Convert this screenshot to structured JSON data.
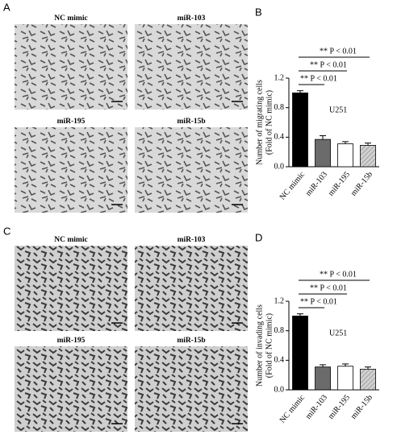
{
  "panels": {
    "A": "A",
    "C": "C",
    "images_A": [
      "NC mimic",
      "miR-103",
      "miR-195",
      "miR-15b"
    ],
    "images_C": [
      "NC mimic",
      "miR-103",
      "miR-195",
      "miR-15b"
    ]
  },
  "chart_data": [
    {
      "type": "bar",
      "panel": "B",
      "ylabel": [
        "Number of migrating cells",
        "(Fold of NC mimic)"
      ],
      "label": "U251",
      "annotations": [
        "** P < 0.01",
        "** P < 0.01",
        "** P < 0.01"
      ],
      "categories": [
        "NC mimic",
        "miR-103",
        "miR-195",
        "miR-15b"
      ],
      "values": [
        1.0,
        0.37,
        0.31,
        0.29
      ],
      "errors": [
        0.03,
        0.05,
        0.03,
        0.03
      ],
      "colors": [
        "#000000",
        "#6b6b6b",
        "#ffffff",
        "#c8c8c8"
      ],
      "hatched": [
        false,
        false,
        false,
        true
      ],
      "ylim": [
        0,
        1.2
      ],
      "yticks": [
        {
          "value": 0,
          "label": "0.0"
        },
        0.4,
        0.8,
        1.2
      ]
    },
    {
      "type": "bar",
      "panel": "D",
      "ylabel": [
        "Number of invading cells",
        "(Fold of NC mimic)"
      ],
      "label": "U251",
      "annotations": [
        "** P < 0.01",
        "** P < 0.01",
        "** P < 0.01"
      ],
      "categories": [
        "NC mimic",
        "miR-103",
        "miR-195",
        "miR-15b"
      ],
      "values": [
        1.0,
        0.31,
        0.32,
        0.28
      ],
      "errors": [
        0.03,
        0.03,
        0.03,
        0.03
      ],
      "colors": [
        "#000000",
        "#6b6b6b",
        "#ffffff",
        "#c8c8c8"
      ],
      "hatched": [
        false,
        false,
        false,
        true
      ],
      "ylim": [
        0,
        1.2
      ],
      "yticks": [
        {
          "value": 0,
          "label": "0.0"
        },
        0.4,
        0.8,
        1.2
      ]
    }
  ]
}
